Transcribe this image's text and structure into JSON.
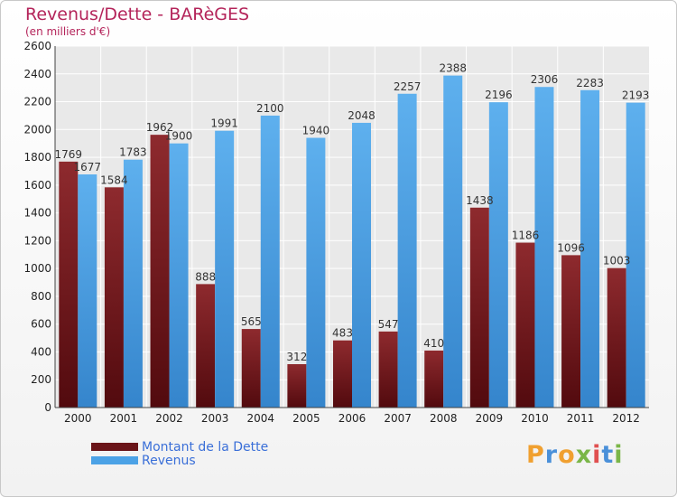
{
  "header": {
    "title": "Revenus/Dette - BARèGES",
    "subtitle": "(en milliers d'€)"
  },
  "colors": {
    "dette": "#7a1c20",
    "revenus": "#4ca2e6",
    "title": "#b4245a",
    "legend_text": "#3a6fd8"
  },
  "chart_data": {
    "type": "bar",
    "title": "Revenus/Dette - BARèGES",
    "subtitle": "(en milliers d'€)",
    "categories": [
      "2000",
      "2001",
      "2002",
      "2003",
      "2004",
      "2005",
      "2006",
      "2007",
      "2008",
      "2009",
      "2010",
      "2011",
      "2012"
    ],
    "series": [
      {
        "name": "Montant de la Dette",
        "values": [
          1769,
          1584,
          1962,
          888,
          565,
          312,
          483,
          547,
          410,
          1438,
          1186,
          1096,
          1003
        ],
        "labels": [
          "1769",
          "1584",
          "1962",
          "888",
          "565",
          "312",
          "483",
          "547",
          "410",
          "1438",
          "1186",
          "1096",
          "1003"
        ]
      },
      {
        "name": "Revenus",
        "values": [
          1677,
          1783,
          1900,
          1991,
          2100,
          1940,
          2048,
          2257,
          2388,
          2196,
          2306,
          2283,
          2193
        ],
        "labels": [
          "1677",
          "1783",
          "1900",
          "1991",
          "2100",
          "1940",
          "2048",
          "2257",
          "2388",
          "2196",
          "2306",
          "2283",
          "2193"
        ]
      }
    ],
    "ylim": [
      0,
      2600
    ],
    "yticks": [
      0,
      200,
      400,
      600,
      800,
      1000,
      1200,
      1400,
      1600,
      1800,
      2000,
      2200,
      2400,
      2600
    ],
    "grid": true,
    "legend_position": "bottom-left"
  },
  "legend": {
    "items": [
      {
        "label": "Montant de la Dette"
      },
      {
        "label": "Revenus"
      }
    ]
  },
  "logo": {
    "text": "Proxiti",
    "letter_colors": [
      "#f0a030",
      "#4a90d9",
      "#f0a030",
      "#7ab648",
      "#e05050",
      "#4a90d9",
      "#7ab648"
    ]
  }
}
